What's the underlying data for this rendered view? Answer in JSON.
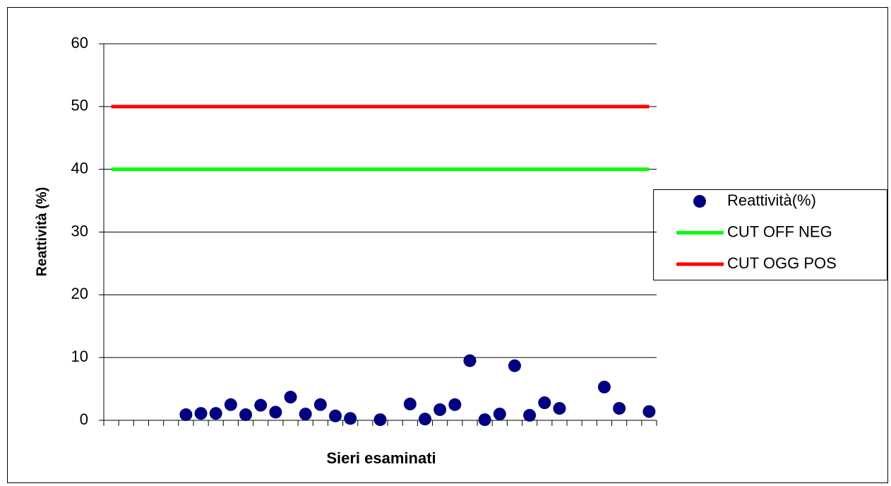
{
  "chart_data": {
    "type": "line",
    "y_label": "Reattività (%)",
    "x_label": "Sieri esaminati",
    "categories": [
      null,
      null,
      null,
      null,
      null,
      null,
      null,
      null,
      null,
      null,
      null,
      null,
      null,
      null,
      null,
      null,
      null,
      null,
      null,
      null,
      null,
      null,
      null,
      null,
      null,
      null,
      null,
      null,
      null,
      null,
      null,
      null,
      null,
      null,
      null,
      null,
      null
    ],
    "series": [
      {
        "name": "Reattività(%)",
        "color": "#000080",
        "mode": "markers",
        "values": [
          null,
          null,
          null,
          null,
          null,
          0.9,
          1.1,
          1.1,
          2.5,
          0.9,
          2.4,
          1.3,
          3.7,
          1.0,
          2.5,
          0.7,
          0.3,
          null,
          0.1,
          null,
          2.6,
          0.2,
          1.7,
          2.5,
          9.5,
          0.1,
          1.0,
          8.7,
          0.8,
          2.8,
          1.9,
          null,
          null,
          5.3,
          1.9,
          null,
          1.4
        ]
      },
      {
        "name": "CUT OFF NEG",
        "color": "#00ff00",
        "mode": "line",
        "values": [
          40,
          40,
          40,
          40,
          40,
          40,
          40,
          40,
          40,
          40,
          40,
          40,
          40,
          40,
          40,
          40,
          40,
          40,
          40,
          40,
          40,
          40,
          40,
          40,
          40,
          40,
          40,
          40,
          40,
          40,
          40,
          40,
          40,
          40,
          40,
          40,
          40
        ]
      },
      {
        "name": "CUT OGG POS",
        "color": "#ff0000",
        "mode": "line",
        "values": [
          50,
          50,
          50,
          50,
          50,
          50,
          50,
          50,
          50,
          50,
          50,
          50,
          50,
          50,
          50,
          50,
          50,
          50,
          50,
          50,
          50,
          50,
          50,
          50,
          50,
          50,
          50,
          50,
          50,
          50,
          50,
          50,
          50,
          50,
          50,
          50,
          50
        ]
      }
    ],
    "ylim": [
      0,
      60
    ],
    "yticks": [
      0,
      10,
      20,
      30,
      40,
      50,
      60
    ],
    "grid": true,
    "legend": "right"
  }
}
